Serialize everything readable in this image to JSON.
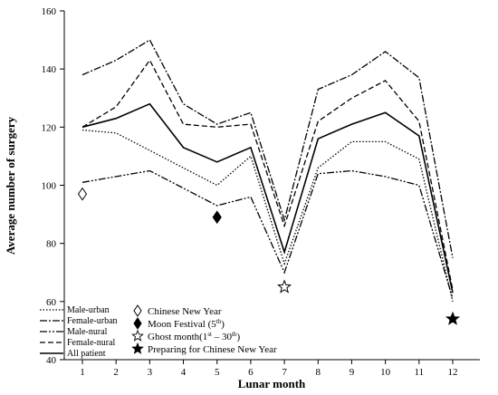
{
  "chart_data": {
    "type": "line",
    "title": "",
    "xlabel": "Lunar month",
    "ylabel": "Average number of surgery",
    "x": [
      1,
      2,
      3,
      4,
      5,
      6,
      7,
      8,
      9,
      10,
      11,
      12
    ],
    "xlim": [
      0.5,
      12.5
    ],
    "ylim": [
      40,
      160
    ],
    "yticks": [
      40,
      60,
      80,
      100,
      120,
      140,
      160
    ],
    "grid": false,
    "legend_position": "bottom-left",
    "series": [
      {
        "name": "Male-urban",
        "style": "dotted",
        "values": [
          119,
          118,
          112,
          106,
          100,
          110,
          73,
          106,
          115,
          115,
          109,
          60
        ]
      },
      {
        "name": "Female-urban",
        "style": "dash-dot",
        "values": [
          138,
          143,
          150,
          128,
          121,
          125,
          88,
          133,
          138,
          146,
          137,
          75
        ]
      },
      {
        "name": "Male-rural",
        "style": "dash-dot-dot",
        "values": [
          101,
          103,
          105,
          99,
          93,
          96,
          70,
          104,
          105,
          103,
          100,
          61
        ]
      },
      {
        "name": "Female-rural",
        "style": "dashed",
        "values": [
          120,
          127,
          143,
          121,
          120,
          121,
          86,
          122,
          130,
          136,
          122,
          64
        ]
      },
      {
        "name": "All patient",
        "style": "solid",
        "values": [
          120,
          123,
          128,
          113,
          108,
          113,
          77,
          116,
          121,
          125,
          117,
          63
        ]
      }
    ],
    "markers": [
      {
        "label": "Chinese New Year",
        "symbol": "open-diamond",
        "x": 1,
        "y": 97
      },
      {
        "label": "Moon Festival (5th)",
        "symbol": "filled-diamond",
        "x": 5,
        "y": 89
      },
      {
        "label": "Ghost month(1st – 30th)",
        "symbol": "open-star",
        "x": 7,
        "y": 65
      },
      {
        "label": "Preparing for Chinese New Year",
        "symbol": "filled-star",
        "x": 12,
        "y": 54
      }
    ],
    "legend_series_labels": [
      "Male-urban",
      "Female-urban",
      "Male-nural",
      "Female-nural",
      "All patient"
    ],
    "legend_marker_labels": [
      "Chinese New Year",
      "Moon Festival (5",
      "th",
      ")",
      "Ghost month(1",
      "st",
      " – 30",
      "th",
      ")",
      "Preparing for Chinese New Year"
    ]
  }
}
